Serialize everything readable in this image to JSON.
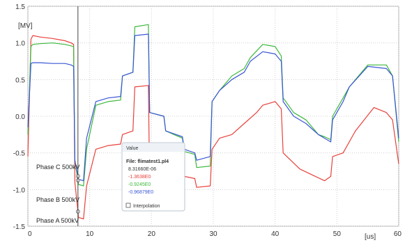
{
  "chart_data": {
    "type": "line",
    "title": "",
    "ylabel": "[MV]",
    "xlabel": "[us]",
    "xlim": [
      0,
      60
    ],
    "ylim": [
      -1.5,
      1.5
    ],
    "x_ticks": [
      "0",
      "10",
      "20",
      "30",
      "40",
      "50",
      "60"
    ],
    "y_ticks": [
      "1.5",
      "1.0",
      "0.5",
      "0.0",
      "-0.5",
      "-1.0",
      "-1.5"
    ],
    "grid": true,
    "cursor_x": 8.1,
    "phase_labels": [
      "Phase C 500kV",
      "Phase B 500kV",
      "Phase A 500kV"
    ],
    "tooltip": {
      "header": "Value",
      "title": "File: flimatest1.pl4",
      "time": "8.31660E-06",
      "values": [
        "-1.3638E0",
        "-0.9245E0",
        "-0.96879E0"
      ],
      "checkbox_label": "Interpolation"
    },
    "series": [
      {
        "color": "#e8403a",
        "points": [
          [
            0,
            -0.55
          ],
          [
            0.5,
            1.05
          ],
          [
            0.8,
            1.1
          ],
          [
            2,
            1.08
          ],
          [
            4,
            1.06
          ],
          [
            6,
            1.03
          ],
          [
            7,
            1.0
          ],
          [
            7.4,
            0.98
          ],
          [
            7.6,
            -0.9
          ],
          [
            8.2,
            -1.38
          ],
          [
            9,
            -1.4
          ],
          [
            9.5,
            -0.95
          ],
          [
            11,
            -0.45
          ],
          [
            13,
            -0.4
          ],
          [
            15,
            -0.38
          ],
          [
            15.3,
            -0.25
          ],
          [
            17,
            -0.2
          ],
          [
            17.3,
            0.4
          ],
          [
            19.5,
            0.42
          ],
          [
            19.7,
            -0.95
          ],
          [
            22,
            -0.9
          ],
          [
            22.3,
            -0.62
          ],
          [
            25,
            -0.6
          ],
          [
            25.3,
            -0.82
          ],
          [
            27,
            -0.85
          ],
          [
            27.3,
            -0.97
          ],
          [
            29.5,
            -0.95
          ],
          [
            29.8,
            -0.45
          ],
          [
            31,
            -0.3
          ],
          [
            33,
            -0.25
          ],
          [
            35,
            -0.1
          ],
          [
            37,
            0.05
          ],
          [
            38,
            0.15
          ],
          [
            40,
            0.2
          ],
          [
            41,
            0.1
          ],
          [
            41.3,
            -0.5
          ],
          [
            44,
            -0.72
          ],
          [
            46,
            -0.8
          ],
          [
            48,
            -0.88
          ],
          [
            49,
            -0.82
          ],
          [
            49.3,
            -0.55
          ],
          [
            51,
            -0.5
          ],
          [
            53,
            -0.2
          ],
          [
            56,
            0.12
          ],
          [
            58,
            0.05
          ],
          [
            59,
            -0.05
          ],
          [
            60,
            -0.65
          ]
        ]
      },
      {
        "color": "#3cb83c",
        "points": [
          [
            0,
            -0.25
          ],
          [
            0.5,
            0.95
          ],
          [
            0.8,
            0.98
          ],
          [
            2,
            0.99
          ],
          [
            4,
            1.0
          ],
          [
            6,
            0.98
          ],
          [
            7,
            0.96
          ],
          [
            7.4,
            0.95
          ],
          [
            7.6,
            -0.6
          ],
          [
            8.2,
            -0.93
          ],
          [
            9,
            -0.95
          ],
          [
            9.5,
            -0.45
          ],
          [
            11,
            0.15
          ],
          [
            13,
            0.2
          ],
          [
            15,
            0.22
          ],
          [
            15.3,
            0.55
          ],
          [
            17,
            0.6
          ],
          [
            17.3,
            1.22
          ],
          [
            19.5,
            1.25
          ],
          [
            19.7,
            0.05
          ],
          [
            22,
            0.0
          ],
          [
            22.3,
            -0.2
          ],
          [
            25,
            -0.3
          ],
          [
            25.3,
            -0.48
          ],
          [
            27,
            -0.52
          ],
          [
            27.3,
            -0.7
          ],
          [
            29.5,
            -0.68
          ],
          [
            29.8,
            0.2
          ],
          [
            31,
            0.35
          ],
          [
            33,
            0.55
          ],
          [
            35,
            0.65
          ],
          [
            36,
            0.8
          ],
          [
            38,
            0.98
          ],
          [
            40,
            0.95
          ],
          [
            41,
            0.82
          ],
          [
            41.3,
            0.25
          ],
          [
            43,
            0.05
          ],
          [
            45,
            -0.05
          ],
          [
            47,
            -0.25
          ],
          [
            48,
            -0.28
          ],
          [
            49,
            -0.32
          ],
          [
            49.3,
            0.0
          ],
          [
            51,
            0.25
          ],
          [
            52,
            0.4
          ],
          [
            55,
            0.7
          ],
          [
            58,
            0.7
          ],
          [
            59,
            0.55
          ],
          [
            60,
            -0.35
          ]
        ]
      },
      {
        "color": "#3a56d6",
        "points": [
          [
            0,
            -0.15
          ],
          [
            0.5,
            0.72
          ],
          [
            0.8,
            0.73
          ],
          [
            2,
            0.73
          ],
          [
            4,
            0.72
          ],
          [
            6,
            0.72
          ],
          [
            7,
            0.7
          ],
          [
            7.4,
            0.68
          ],
          [
            7.6,
            -0.6
          ],
          [
            8.2,
            -0.86
          ],
          [
            9,
            -0.88
          ],
          [
            9.5,
            -0.3
          ],
          [
            11,
            0.2
          ],
          [
            13,
            0.25
          ],
          [
            15,
            0.27
          ],
          [
            15.3,
            0.55
          ],
          [
            17,
            0.6
          ],
          [
            17.3,
            1.1
          ],
          [
            19.5,
            1.12
          ],
          [
            19.7,
            0.05
          ],
          [
            22,
            0.0
          ],
          [
            22.3,
            -0.2
          ],
          [
            25,
            -0.28
          ],
          [
            25.3,
            -0.45
          ],
          [
            27,
            -0.5
          ],
          [
            27.3,
            -0.6
          ],
          [
            29.5,
            -0.55
          ],
          [
            29.8,
            0.2
          ],
          [
            31,
            0.35
          ],
          [
            33,
            0.5
          ],
          [
            35,
            0.6
          ],
          [
            36,
            0.75
          ],
          [
            38,
            0.88
          ],
          [
            40,
            0.85
          ],
          [
            41,
            0.75
          ],
          [
            41.3,
            0.2
          ],
          [
            43,
            0.0
          ],
          [
            45,
            -0.1
          ],
          [
            47,
            -0.25
          ],
          [
            48,
            -0.3
          ],
          [
            49,
            -0.35
          ],
          [
            49.3,
            -0.05
          ],
          [
            51,
            0.2
          ],
          [
            52,
            0.4
          ],
          [
            55,
            0.68
          ],
          [
            58,
            0.65
          ],
          [
            59,
            0.55
          ],
          [
            60,
            -0.3
          ]
        ]
      }
    ]
  }
}
